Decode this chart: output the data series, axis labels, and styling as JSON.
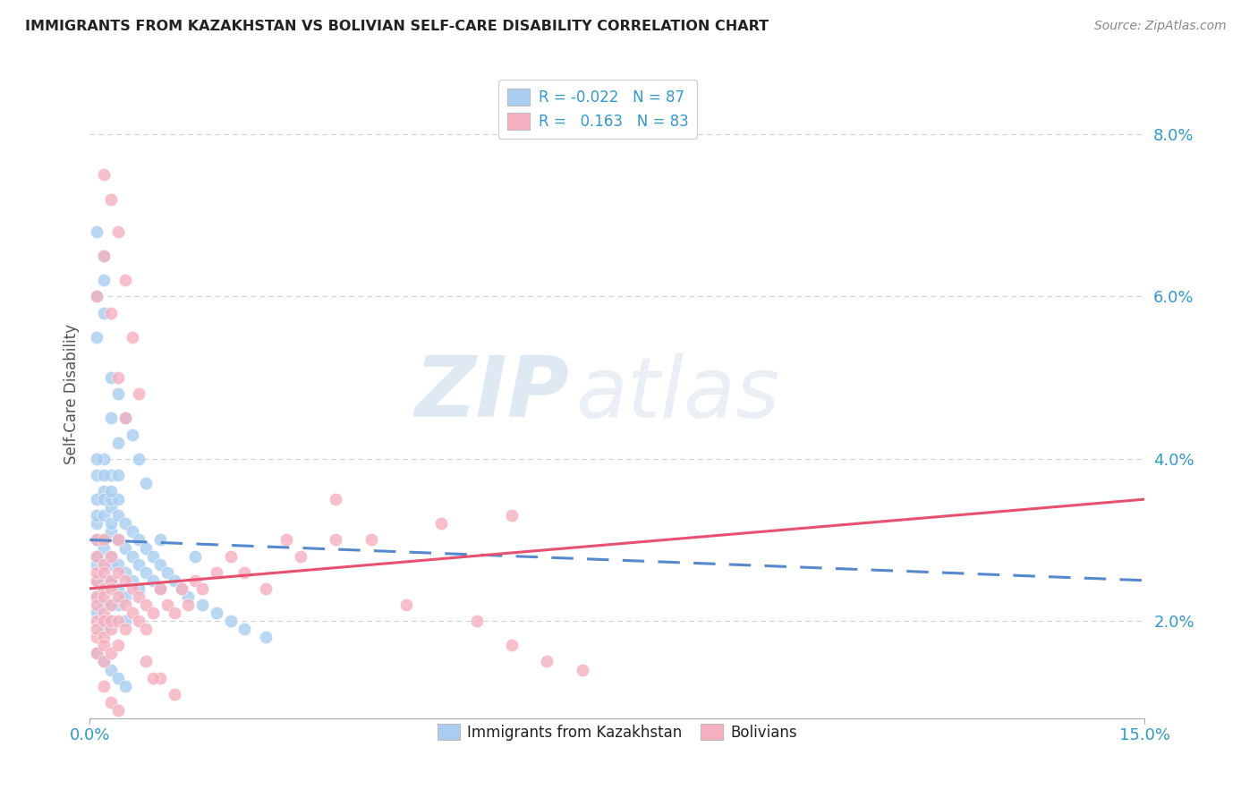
{
  "title": "IMMIGRANTS FROM KAZAKHSTAN VS BOLIVIAN SELF-CARE DISABILITY CORRELATION CHART",
  "source": "Source: ZipAtlas.com",
  "ylabel": "Self-Care Disability",
  "legend_blue_label": "R = -0.022   N = 87",
  "legend_pink_label": "R =   0.163   N = 83",
  "legend_bottom_blue": "Immigrants from Kazakhstan",
  "legend_bottom_pink": "Bolivians",
  "blue_color": "#a8cdf0",
  "pink_color": "#f5b0c0",
  "blue_line_color": "#5588cc",
  "pink_line_color": "#e85070",
  "watermark_zip": "ZIP",
  "watermark_atlas": "atlas",
  "xlim": [
    0.0,
    0.15
  ],
  "ylim": [
    0.008,
    0.088
  ],
  "blue_line_x0": 0.0,
  "blue_line_y0": 0.03,
  "blue_line_x1": 0.15,
  "blue_line_y1": 0.025,
  "pink_line_x0": 0.0,
  "pink_line_y0": 0.024,
  "pink_line_x1": 0.15,
  "pink_line_y1": 0.035,
  "blue_scatter_x": [
    0.001,
    0.001,
    0.001,
    0.001,
    0.001,
    0.001,
    0.001,
    0.001,
    0.001,
    0.001,
    0.002,
    0.002,
    0.002,
    0.002,
    0.002,
    0.002,
    0.002,
    0.002,
    0.002,
    0.002,
    0.003,
    0.003,
    0.003,
    0.003,
    0.003,
    0.003,
    0.003,
    0.003,
    0.003,
    0.003,
    0.004,
    0.004,
    0.004,
    0.004,
    0.004,
    0.004,
    0.004,
    0.005,
    0.005,
    0.005,
    0.005,
    0.005,
    0.006,
    0.006,
    0.006,
    0.007,
    0.007,
    0.007,
    0.008,
    0.008,
    0.009,
    0.009,
    0.01,
    0.01,
    0.011,
    0.012,
    0.013,
    0.014,
    0.016,
    0.018,
    0.02,
    0.022,
    0.025,
    0.001,
    0.001,
    0.002,
    0.002,
    0.003,
    0.003,
    0.004,
    0.001,
    0.002,
    0.003,
    0.004,
    0.005,
    0.001,
    0.002,
    0.003,
    0.01,
    0.015,
    0.004,
    0.005,
    0.006,
    0.007,
    0.008,
    0.001,
    0.002
  ],
  "blue_scatter_y": [
    0.035,
    0.032,
    0.03,
    0.028,
    0.025,
    0.023,
    0.021,
    0.038,
    0.033,
    0.027,
    0.036,
    0.033,
    0.03,
    0.027,
    0.025,
    0.022,
    0.019,
    0.04,
    0.035,
    0.029,
    0.034,
    0.031,
    0.028,
    0.025,
    0.022,
    0.02,
    0.038,
    0.035,
    0.032,
    0.027,
    0.033,
    0.03,
    0.027,
    0.024,
    0.022,
    0.038,
    0.035,
    0.032,
    0.029,
    0.026,
    0.023,
    0.02,
    0.031,
    0.028,
    0.025,
    0.03,
    0.027,
    0.024,
    0.029,
    0.026,
    0.028,
    0.025,
    0.027,
    0.024,
    0.026,
    0.025,
    0.024,
    0.023,
    0.022,
    0.021,
    0.02,
    0.019,
    0.018,
    0.06,
    0.055,
    0.062,
    0.058,
    0.05,
    0.045,
    0.042,
    0.016,
    0.015,
    0.014,
    0.013,
    0.012,
    0.04,
    0.038,
    0.036,
    0.03,
    0.028,
    0.048,
    0.045,
    0.043,
    0.04,
    0.037,
    0.068,
    0.065
  ],
  "pink_scatter_x": [
    0.001,
    0.001,
    0.001,
    0.001,
    0.001,
    0.001,
    0.001,
    0.001,
    0.001,
    0.001,
    0.002,
    0.002,
    0.002,
    0.002,
    0.002,
    0.002,
    0.002,
    0.002,
    0.002,
    0.002,
    0.003,
    0.003,
    0.003,
    0.003,
    0.003,
    0.003,
    0.003,
    0.004,
    0.004,
    0.004,
    0.004,
    0.004,
    0.005,
    0.005,
    0.005,
    0.006,
    0.006,
    0.007,
    0.007,
    0.008,
    0.008,
    0.009,
    0.01,
    0.011,
    0.012,
    0.013,
    0.014,
    0.015,
    0.016,
    0.018,
    0.02,
    0.022,
    0.025,
    0.028,
    0.03,
    0.035,
    0.04,
    0.05,
    0.06,
    0.001,
    0.002,
    0.003,
    0.004,
    0.005,
    0.002,
    0.003,
    0.004,
    0.005,
    0.006,
    0.007,
    0.002,
    0.003,
    0.004,
    0.01,
    0.012,
    0.008,
    0.009,
    0.06,
    0.065,
    0.07,
    0.055,
    0.045,
    0.035
  ],
  "pink_scatter_y": [
    0.028,
    0.025,
    0.023,
    0.02,
    0.018,
    0.016,
    0.03,
    0.026,
    0.022,
    0.019,
    0.027,
    0.024,
    0.021,
    0.018,
    0.015,
    0.03,
    0.026,
    0.023,
    0.02,
    0.017,
    0.025,
    0.022,
    0.019,
    0.016,
    0.028,
    0.024,
    0.02,
    0.026,
    0.023,
    0.02,
    0.017,
    0.03,
    0.025,
    0.022,
    0.019,
    0.024,
    0.021,
    0.023,
    0.02,
    0.022,
    0.019,
    0.021,
    0.024,
    0.022,
    0.021,
    0.024,
    0.022,
    0.025,
    0.024,
    0.026,
    0.028,
    0.026,
    0.024,
    0.03,
    0.028,
    0.03,
    0.03,
    0.032,
    0.033,
    0.06,
    0.065,
    0.058,
    0.05,
    0.045,
    0.075,
    0.072,
    0.068,
    0.062,
    0.055,
    0.048,
    0.012,
    0.01,
    0.009,
    0.013,
    0.011,
    0.015,
    0.013,
    0.017,
    0.015,
    0.014,
    0.02,
    0.022,
    0.035
  ]
}
